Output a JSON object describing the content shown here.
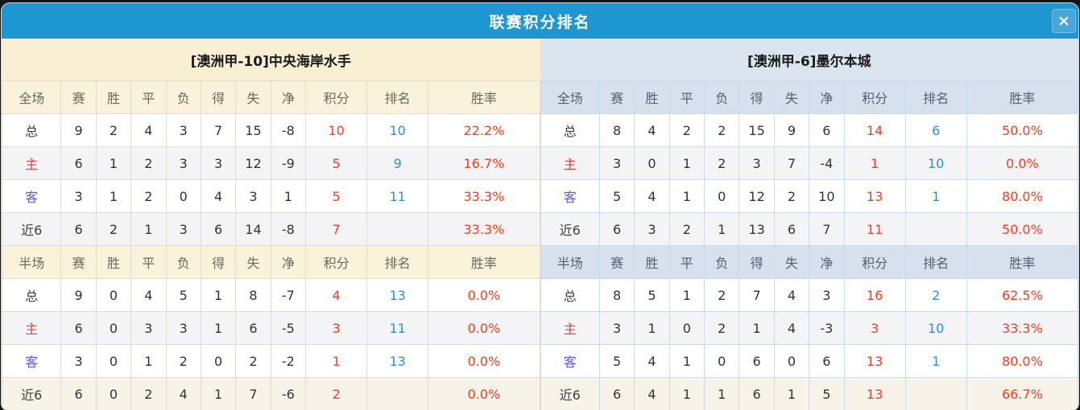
{
  "dialog": {
    "title": "联赛积分排名",
    "close_glyph": "×"
  },
  "columns": [
    "赛",
    "胜",
    "平",
    "负",
    "得",
    "失",
    "净",
    "积分",
    "排名",
    "胜率"
  ],
  "panels": [
    {
      "team_title": "[澳洲甲-10]中央海岸水手",
      "theme": "cream",
      "sections": [
        {
          "scope_label": "全场",
          "rows": [
            {
              "label": "总",
              "type": "total",
              "cells": [
                "9",
                "2",
                "4",
                "3",
                "7",
                "15",
                "-8",
                "10",
                "10",
                "22.2%"
              ]
            },
            {
              "label": "主",
              "type": "home",
              "cells": [
                "6",
                "1",
                "2",
                "3",
                "3",
                "12",
                "-9",
                "5",
                "9",
                "16.7%"
              ]
            },
            {
              "label": "客",
              "type": "away",
              "cells": [
                "3",
                "1",
                "2",
                "0",
                "4",
                "3",
                "1",
                "5",
                "11",
                "33.3%"
              ]
            },
            {
              "label": "近6",
              "type": "recent",
              "cells": [
                "6",
                "2",
                "1",
                "3",
                "6",
                "14",
                "-8",
                "7",
                "",
                "33.3%"
              ]
            }
          ]
        },
        {
          "scope_label": "半场",
          "rows": [
            {
              "label": "总",
              "type": "total",
              "cells": [
                "9",
                "0",
                "4",
                "5",
                "1",
                "8",
                "-7",
                "4",
                "13",
                "0.0%"
              ]
            },
            {
              "label": "主",
              "type": "home",
              "cells": [
                "6",
                "0",
                "3",
                "3",
                "1",
                "6",
                "-5",
                "3",
                "11",
                "0.0%"
              ]
            },
            {
              "label": "客",
              "type": "away",
              "cells": [
                "3",
                "0",
                "1",
                "2",
                "0",
                "2",
                "-2",
                "1",
                "13",
                "0.0%"
              ]
            },
            {
              "label": "近6",
              "type": "recent",
              "cells": [
                "6",
                "0",
                "2",
                "4",
                "1",
                "7",
                "-6",
                "2",
                "",
                "0.0%"
              ]
            }
          ]
        }
      ]
    },
    {
      "team_title": "[澳洲甲-6]墨尔本城",
      "theme": "blue",
      "sections": [
        {
          "scope_label": "全场",
          "rows": [
            {
              "label": "总",
              "type": "total",
              "cells": [
                "8",
                "4",
                "2",
                "2",
                "15",
                "9",
                "6",
                "14",
                "6",
                "50.0%"
              ]
            },
            {
              "label": "主",
              "type": "home",
              "cells": [
                "3",
                "0",
                "1",
                "2",
                "3",
                "7",
                "-4",
                "1",
                "10",
                "0.0%"
              ]
            },
            {
              "label": "客",
              "type": "away",
              "cells": [
                "5",
                "4",
                "1",
                "0",
                "12",
                "2",
                "10",
                "13",
                "1",
                "80.0%"
              ]
            },
            {
              "label": "近6",
              "type": "recent",
              "cells": [
                "6",
                "3",
                "2",
                "1",
                "13",
                "6",
                "7",
                "11",
                "",
                "50.0%"
              ]
            }
          ]
        },
        {
          "scope_label": "半场",
          "rows": [
            {
              "label": "总",
              "type": "total",
              "cells": [
                "8",
                "5",
                "1",
                "2",
                "7",
                "4",
                "3",
                "16",
                "2",
                "62.5%"
              ]
            },
            {
              "label": "主",
              "type": "home",
              "cells": [
                "3",
                "1",
                "0",
                "2",
                "1",
                "4",
                "-3",
                "3",
                "10",
                "33.3%"
              ]
            },
            {
              "label": "客",
              "type": "away",
              "cells": [
                "5",
                "4",
                "1",
                "0",
                "6",
                "0",
                "6",
                "13",
                "1",
                "80.0%"
              ]
            },
            {
              "label": "近6",
              "type": "recent",
              "cells": [
                "6",
                "4",
                "1",
                "1",
                "6",
                "1",
                "5",
                "13",
                "",
                "66.7%"
              ]
            }
          ]
        }
      ]
    }
  ],
  "colors": {
    "titlebar_blue": "#1E96D2",
    "close_button_blue": "#49A5DA",
    "left_header_cream": "#F9EFD3",
    "right_header_blue": "#DBE5EF",
    "points_and_rate_red": "#FB3B1C",
    "rank_blue": "#2D8FDC",
    "home_label_red": "#E83B36",
    "away_label_blue": "#5A55EE"
  },
  "column_widths_percent": [
    11,
    6.5,
    6.5,
    6.5,
    6.5,
    6.5,
    6.5,
    6.5,
    11.4,
    11.4,
    20.7
  ]
}
